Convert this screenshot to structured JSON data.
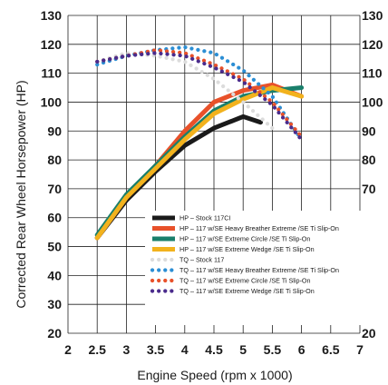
{
  "chart_data": {
    "type": "line",
    "title": "",
    "xlabel": "Engine Speed (rpm x 1000)",
    "ylabel": "Corrected Rear Wheel Horsepower (HP)",
    "xlim": [
      2,
      7
    ],
    "ylim": [
      20,
      130
    ],
    "x_ticks": [
      "2",
      "2.5",
      "3",
      "3.5",
      "4",
      "4.5",
      "5",
      "5.5",
      "6",
      "6.5",
      "7"
    ],
    "y_ticks": [
      "20",
      "30",
      "40",
      "50",
      "60",
      "70",
      "80",
      "90",
      "100",
      "110",
      "120",
      "130"
    ],
    "right_y_ticks": [
      "20",
      "70",
      "80",
      "90",
      "100",
      "110",
      "120",
      "130"
    ],
    "grid": true,
    "legend_position": "bottom-right",
    "series": [
      {
        "name": "HP – Stock 117CI",
        "color": "#1a1a1a",
        "style": "solid",
        "x": [
          2.5,
          3.0,
          3.5,
          4.0,
          4.5,
          5.0,
          5.3
        ],
        "y": [
          53,
          66,
          76,
          85,
          91,
          95,
          93
        ]
      },
      {
        "name": "HP – 117 w/SE Heavy Breather Extreme /SE Ti Slip-On",
        "color": "#e8512a",
        "style": "solid",
        "x": [
          2.5,
          3.0,
          3.5,
          4.0,
          4.5,
          5.0,
          5.5,
          6.0
        ],
        "y": [
          53,
          67,
          78,
          90,
          100,
          104,
          106,
          102
        ]
      },
      {
        "name": "HP – 117 w/SE Extreme Circle /SE Ti Slip-On",
        "color": "#1a7f6b",
        "style": "solid",
        "x": [
          2.5,
          3.0,
          3.5,
          4.0,
          4.5,
          5.0,
          5.5,
          6.0
        ],
        "y": [
          54,
          68,
          78,
          88,
          97,
          102,
          104,
          105
        ]
      },
      {
        "name": "HP – 117 w/SE Extreme Wedge /SE Ti Slip-On",
        "color": "#f2b21d",
        "style": "solid",
        "x": [
          2.5,
          3.0,
          3.5,
          4.0,
          4.5,
          5.0,
          5.5,
          6.0
        ],
        "y": [
          53,
          67,
          77,
          87,
          96,
          101,
          105,
          102
        ]
      },
      {
        "name": "TQ – Stock 117",
        "color": "#dcdcdc",
        "style": "dotted",
        "x": [
          2.5,
          3.0,
          3.5,
          4.0,
          4.5,
          5.0,
          5.5
        ],
        "y": [
          114,
          117,
          116,
          114,
          108,
          100,
          91
        ]
      },
      {
        "name": "TQ – 117 w/SE Heavy Breather Extreme /SE Ti Slip-On",
        "color": "#2b8ed4",
        "style": "dotted",
        "x": [
          2.5,
          3.0,
          3.5,
          4.0,
          4.5,
          5.0,
          5.5,
          6.0
        ],
        "y": [
          113,
          116,
          118,
          119,
          117,
          111,
          102,
          87
        ]
      },
      {
        "name": "TQ – 117 w/SE Extreme Circle /SE Ti Slip-On",
        "color": "#e8512a",
        "style": "dotted",
        "x": [
          2.5,
          3.0,
          3.5,
          4.0,
          4.5,
          5.0,
          5.5,
          6.0
        ],
        "y": [
          114,
          116,
          118,
          117,
          113,
          108,
          100,
          88
        ]
      },
      {
        "name": "TQ – 117 w/SE  Extreme Wedge /SE Ti Slip-On",
        "color": "#4a2b8c",
        "style": "dotted",
        "x": [
          2.5,
          3.0,
          3.5,
          4.0,
          4.5,
          5.0,
          5.5,
          6.0
        ],
        "y": [
          114,
          116,
          117,
          116,
          112,
          107,
          99,
          87
        ]
      }
    ]
  }
}
